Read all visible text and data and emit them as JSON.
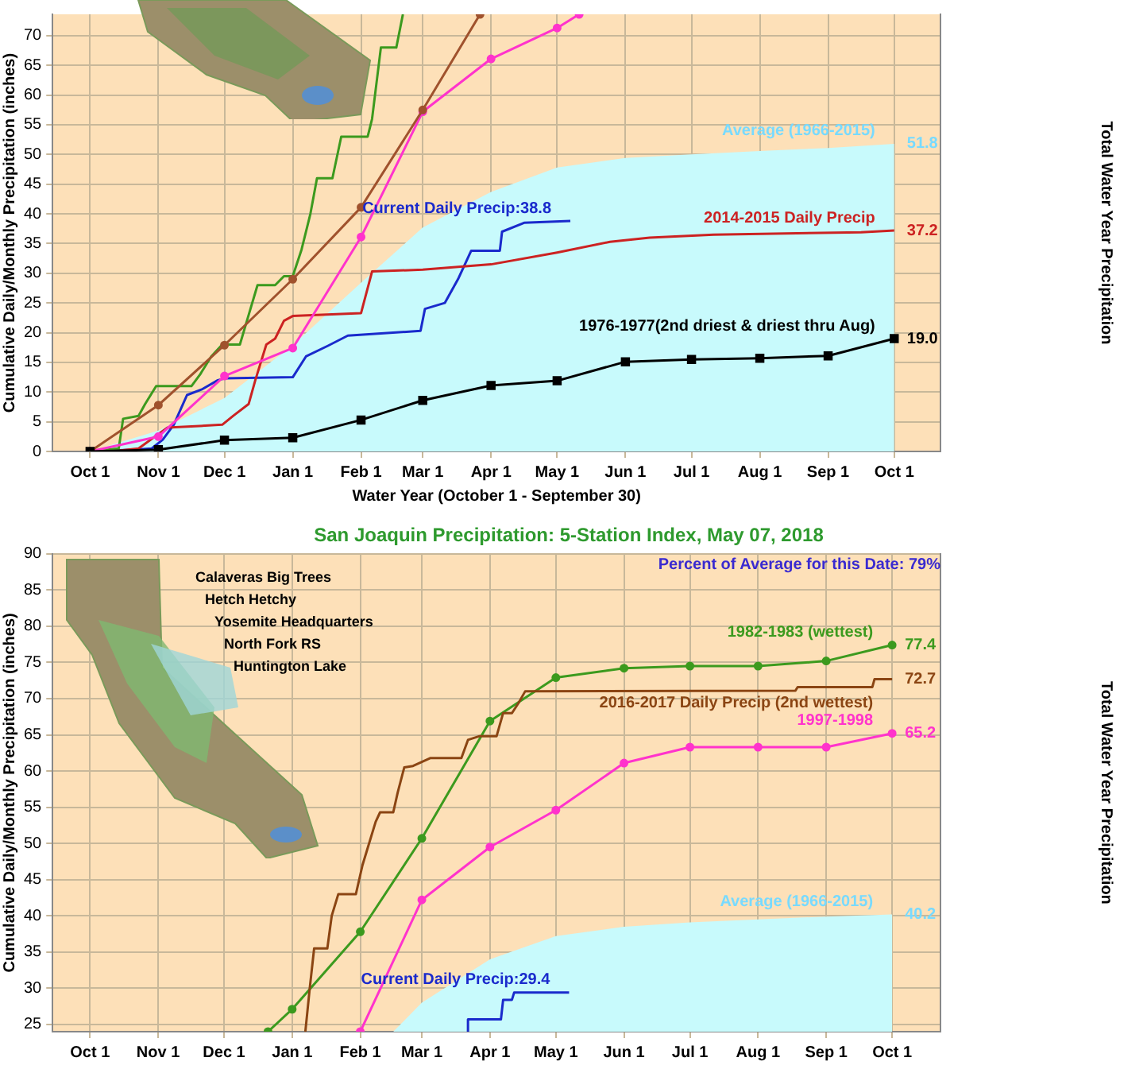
{
  "chart_data": [
    {
      "type": "line",
      "xlabel": "Water Year (October 1 - September 30)",
      "ylabel": "Cumulative Daily/Monthly Precipitation (inches)",
      "y2label": "Total Water Year Precipitation",
      "xlim": [
        "2017-09-14",
        "2018-10-22"
      ],
      "ylim": [
        0,
        73.6
      ],
      "xticks": [
        {
          "value": "2017-10-01",
          "label": "Oct 1"
        },
        {
          "value": "2017-11-01",
          "label": "Nov 1"
        },
        {
          "value": "2017-12-01",
          "label": "Dec 1"
        },
        {
          "value": "2018-01-01",
          "label": "Jan 1"
        },
        {
          "value": "2018-02-01",
          "label": "Feb 1"
        },
        {
          "value": "2018-03-01",
          "label": "Mar 1"
        },
        {
          "value": "2018-04-01",
          "label": "Apr 1"
        },
        {
          "value": "2018-05-01",
          "label": "May 1"
        },
        {
          "value": "2018-06-01",
          "label": "Jun 1"
        },
        {
          "value": "2018-07-01",
          "label": "Jul 1"
        },
        {
          "value": "2018-08-01",
          "label": "Aug 1"
        },
        {
          "value": "2018-09-01",
          "label": "Sep 1"
        },
        {
          "value": "2018-10-01",
          "label": "Oct 1"
        }
      ],
      "yticks": [
        0,
        5,
        10,
        15,
        20,
        25,
        30,
        35,
        40,
        45,
        50,
        55,
        60,
        65,
        70
      ],
      "grid": true,
      "legend": false,
      "series": [
        {
          "type": "area",
          "name": "Average (1966-2015)",
          "color": "#c8fafc",
          "marker": "none",
          "x": [
            "2017-10-01",
            "2017-11-01",
            "2017-12-01",
            "2018-01-01",
            "2018-02-01",
            "2018-03-01",
            "2018-04-01",
            "2018-05-01",
            "2018-06-01",
            "2018-07-01",
            "2018-08-01",
            "2018-09-01",
            "2018-10-01"
          ],
          "values": [
            0,
            3.5,
            9,
            17.9,
            28.4,
            37.7,
            43.7,
            47.8,
            49.4,
            50.0,
            50.6,
            51.1,
            51.8
          ]
        },
        {
          "name": "1976-1977(2nd driest & driest thru Aug)",
          "color": "#000000",
          "marker": "square",
          "x": [
            "2017-10-01",
            "2017-11-01",
            "2017-12-01",
            "2018-01-01",
            "2018-02-01",
            "2018-03-01",
            "2018-04-01",
            "2018-05-01",
            "2018-06-01",
            "2018-07-01",
            "2018-08-01",
            "2018-09-01",
            "2018-10-01"
          ],
          "values": [
            0,
            0.3,
            1.9,
            2.3,
            5.3,
            8.6,
            11.1,
            11.9,
            15.1,
            15.5,
            15.7,
            16.1,
            19.0
          ]
        },
        {
          "color": "#a0522d",
          "marker": "circle",
          "x": [
            "2017-10-01",
            "2017-11-01",
            "2017-12-01",
            "2018-01-01",
            "2018-02-01",
            "2018-03-01",
            "2018-03-27"
          ],
          "values": [
            0,
            7.8,
            17.9,
            29.0,
            41.1,
            57.5,
            73.6
          ]
        },
        {
          "color": "#ff33cc",
          "marker": "circle",
          "x": [
            "2017-10-01",
            "2017-11-01",
            "2017-12-01",
            "2018-01-01",
            "2018-02-01",
            "2018-03-01",
            "2018-04-01",
            "2018-05-01",
            "2018-05-11"
          ],
          "values": [
            0,
            2.5,
            12.7,
            17.4,
            36.1,
            57.2,
            66.1,
            71.3,
            73.6
          ]
        },
        {
          "color": "#3c9a1e",
          "marker": "none",
          "x": [
            "2017-10-01",
            "2017-10-14",
            "2017-10-16",
            "2017-10-23",
            "2017-10-26",
            "2017-10-31",
            "2017-11-16",
            "2017-11-20",
            "2017-11-25",
            "2017-11-30",
            "2017-12-08",
            "2017-12-12",
            "2017-12-16",
            "2017-12-24",
            "2017-12-28",
            "2018-01-01",
            "2018-01-05",
            "2018-01-09",
            "2018-01-12",
            "2018-01-19",
            "2018-01-23",
            "2018-02-04",
            "2018-02-06",
            "2018-02-08",
            "2018-02-10",
            "2018-02-17",
            "2018-02-20"
          ],
          "values": [
            0,
            0.5,
            5.5,
            6,
            8,
            11,
            11,
            13,
            16,
            18,
            18,
            23,
            28,
            28,
            29.5,
            29.5,
            34,
            40,
            46,
            46,
            53,
            53,
            56,
            62,
            68,
            68,
            73.6
          ]
        },
        {
          "name": "2014-2015 Daily Precip",
          "color": "#cc2222",
          "marker": "none",
          "x": [
            "2017-10-01",
            "2017-10-11",
            "2017-10-23",
            "2017-11-05",
            "2017-11-30",
            "2017-12-05",
            "2017-12-12",
            "2017-12-15",
            "2017-12-20",
            "2017-12-24",
            "2017-12-28",
            "2018-01-01",
            "2018-02-01",
            "2018-02-06",
            "2018-03-01",
            "2018-04-01",
            "2018-05-01",
            "2018-05-25",
            "2018-06-12",
            "2018-07-11",
            "2018-09-16",
            "2018-10-01"
          ],
          "values": [
            0,
            0,
            0.5,
            4,
            4.5,
            6,
            8,
            12,
            18,
            19,
            22,
            22.8,
            23.3,
            30.3,
            30.6,
            31.5,
            33.5,
            35.3,
            36.0,
            36.5,
            36.9,
            37.2
          ]
        },
        {
          "name": "Current Daily Precip:38.8",
          "color": "#1a2acc",
          "marker": "none",
          "x": [
            "2017-10-01",
            "2017-10-21",
            "2017-10-29",
            "2017-11-03",
            "2017-11-08",
            "2017-11-14",
            "2017-11-21",
            "2017-11-28",
            "2017-12-01",
            "2018-01-01",
            "2018-01-07",
            "2018-01-17",
            "2018-01-26",
            "2018-02-28",
            "2018-03-02",
            "2018-03-11",
            "2018-03-17",
            "2018-03-23",
            "2018-04-05",
            "2018-04-06",
            "2018-04-16",
            "2018-05-07"
          ],
          "values": [
            0,
            0.3,
            0.5,
            2,
            4.5,
            9.5,
            10.5,
            12,
            12.3,
            12.5,
            16,
            17.8,
            19.5,
            20.3,
            24,
            25,
            29,
            33.8,
            33.8,
            37,
            38.5,
            38.8
          ]
        }
      ],
      "annotations": [
        {
          "text": "51.8",
          "x": "2018-10-01",
          "y": 51.8
        },
        {
          "text": "37.2",
          "x": "2018-10-01",
          "y": 37.2
        },
        {
          "text": "19.0",
          "x": "2018-10-01",
          "y": 19.0
        }
      ]
    },
    {
      "type": "line",
      "title": "San Joaquin Precipitation: 5-Station Index, May 07, 2018",
      "ylabel": "Cumulative Daily/Monthly Precipitation (inches)",
      "y2label": "Total Water Year Precipitation",
      "xlim": [
        "2017-09-14",
        "2018-10-23"
      ],
      "ylim": [
        24,
        90
      ],
      "xticks": [
        {
          "value": "2017-10-01",
          "label": "Oct 1"
        },
        {
          "value": "2017-11-01",
          "label": "Nov 1"
        },
        {
          "value": "2017-12-01",
          "label": "Dec 1"
        },
        {
          "value": "2018-01-01",
          "label": "Jan 1"
        },
        {
          "value": "2018-02-01",
          "label": "Feb 1"
        },
        {
          "value": "2018-03-01",
          "label": "Mar 1"
        },
        {
          "value": "2018-04-01",
          "label": "Apr 1"
        },
        {
          "value": "2018-05-01",
          "label": "May 1"
        },
        {
          "value": "2018-06-01",
          "label": "Jun 1"
        },
        {
          "value": "2018-07-01",
          "label": "Jul 1"
        },
        {
          "value": "2018-08-01",
          "label": "Aug 1"
        },
        {
          "value": "2018-09-01",
          "label": "Sep 1"
        },
        {
          "value": "2018-10-01",
          "label": "Oct 1"
        }
      ],
      "yticks": [
        25,
        30,
        35,
        40,
        45,
        50,
        55,
        60,
        65,
        70,
        75,
        80,
        85,
        90
      ],
      "grid": true,
      "legend": false,
      "series": [
        {
          "type": "area",
          "name": "Average (1966-2015)",
          "color": "#c8fafc",
          "marker": "none",
          "x": [
            "2018-02-16",
            "2018-03-01",
            "2018-04-01",
            "2018-05-01",
            "2018-06-01",
            "2018-07-01",
            "2018-08-01",
            "2018-09-01",
            "2018-10-01"
          ],
          "values": [
            24,
            28,
            34,
            37.2,
            38.5,
            39.1,
            39.5,
            39.9,
            40.2
          ]
        },
        {
          "name": "Current Daily Precip:29.4",
          "color": "#1a2acc",
          "marker": "none",
          "x": [
            "2018-03-22",
            "2018-03-22",
            "2018-04-06",
            "2018-04-07",
            "2018-04-11",
            "2018-04-12",
            "2018-05-07"
          ],
          "values": [
            24,
            25.7,
            25.7,
            28.4,
            28.4,
            29.4,
            29.4
          ]
        },
        {
          "name": "1997-1998",
          "color": "#ff33cc",
          "marker": "circle",
          "x": [
            "2018-02-01",
            "2018-03-01",
            "2018-04-01",
            "2018-05-01",
            "2018-06-01",
            "2018-07-01",
            "2018-08-01",
            "2018-09-01",
            "2018-10-01"
          ],
          "values": [
            24,
            42.2,
            49.5,
            54.6,
            61.1,
            63.3,
            63.3,
            63.3,
            65.2
          ]
        },
        {
          "name": "2016-2017 Daily Precip (2nd wettest)",
          "color": "#8b4513",
          "marker": "none",
          "x": [
            "2018-01-07",
            "2018-01-09",
            "2018-01-11",
            "2018-01-17",
            "2018-01-19",
            "2018-01-22",
            "2018-01-30",
            "2018-02-02",
            "2018-02-04",
            "2018-02-08",
            "2018-02-10",
            "2018-02-16",
            "2018-02-18",
            "2018-02-21",
            "2018-02-25",
            "2018-03-05",
            "2018-03-19",
            "2018-03-22",
            "2018-03-27",
            "2018-04-04",
            "2018-04-07",
            "2018-04-11",
            "2018-04-14",
            "2018-04-17",
            "2018-08-18",
            "2018-08-19",
            "2018-09-22",
            "2018-09-23",
            "2018-10-01"
          ],
          "values": [
            24,
            30,
            35.5,
            35.5,
            40,
            43,
            43,
            47,
            49,
            53,
            54.3,
            54.3,
            57,
            60.5,
            60.7,
            61.8,
            61.8,
            64.3,
            64.8,
            64.8,
            68,
            68,
            69.4,
            71,
            71.1,
            71.6,
            71.6,
            72.7,
            72.7
          ]
        },
        {
          "name": "1982-1983 (wettest)",
          "color": "#3c9a1e",
          "marker": "circle",
          "x": [
            "2017-12-21",
            "2018-01-01",
            "2018-02-01",
            "2018-03-01",
            "2018-04-01",
            "2018-05-01",
            "2018-06-01",
            "2018-07-01",
            "2018-08-01",
            "2018-09-01",
            "2018-10-01"
          ],
          "values": [
            24,
            27.1,
            37.8,
            50.7,
            66.9,
            72.9,
            74.2,
            74.5,
            74.5,
            75.2,
            77.4
          ]
        }
      ],
      "annotations": [
        "Percent of Average for this Date: 79%",
        "Calaveras Big Trees",
        "Hetch Hetchy",
        "Yosemite Headquarters",
        "North Fork RS",
        "Huntington Lake",
        {
          "text": "77.4",
          "x": "2018-10-01",
          "y": 77.4
        },
        {
          "text": "72.7",
          "x": "2018-10-01",
          "y": 72.7
        },
        {
          "text": "65.2",
          "x": "2018-10-01",
          "y": 65.2
        },
        {
          "text": "40.2",
          "x": "2018-10-01",
          "y": 40.2
        }
      ]
    }
  ]
}
